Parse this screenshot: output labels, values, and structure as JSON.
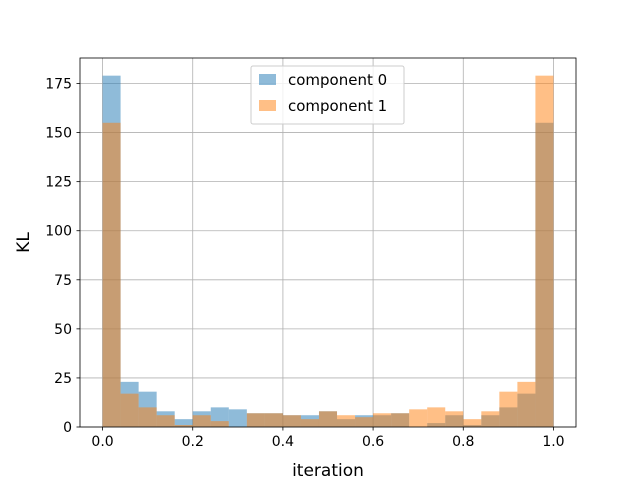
{
  "chart_data": {
    "type": "bar",
    "subtype": "overlapping-histogram",
    "xlabel": "iteration",
    "ylabel": "KL",
    "xlim": [
      -0.05,
      1.05
    ],
    "ylim": [
      0,
      188
    ],
    "xticks": [
      "0.0",
      "0.2",
      "0.4",
      "0.6",
      "0.8",
      "1.0"
    ],
    "yticks": [
      "0",
      "25",
      "50",
      "75",
      "100",
      "125",
      "150",
      "175"
    ],
    "grid": true,
    "legend_position": "top-center",
    "bin_edges": [
      0.0,
      0.04,
      0.08,
      0.12,
      0.16,
      0.2,
      0.24,
      0.28,
      0.32,
      0.36,
      0.4,
      0.44,
      0.48,
      0.52,
      0.56,
      0.6,
      0.64,
      0.68,
      0.72,
      0.76,
      0.8,
      0.84,
      0.88,
      0.92,
      0.96,
      1.0
    ],
    "series": [
      {
        "name": "component 0",
        "color": "#1f77b4",
        "values": [
          179,
          23,
          18,
          8,
          4,
          8,
          10,
          9,
          7,
          7,
          6,
          6,
          8,
          4,
          6,
          6,
          7,
          0,
          2,
          6,
          1,
          6,
          10,
          17,
          155
        ]
      },
      {
        "name": "component 1",
        "color": "#ff7f0e",
        "values": [
          155,
          17,
          10,
          6,
          1,
          6,
          3,
          0,
          7,
          7,
          6,
          4,
          8,
          6,
          5,
          7,
          7,
          9,
          10,
          8,
          4,
          8,
          18,
          23,
          179
        ]
      }
    ]
  }
}
